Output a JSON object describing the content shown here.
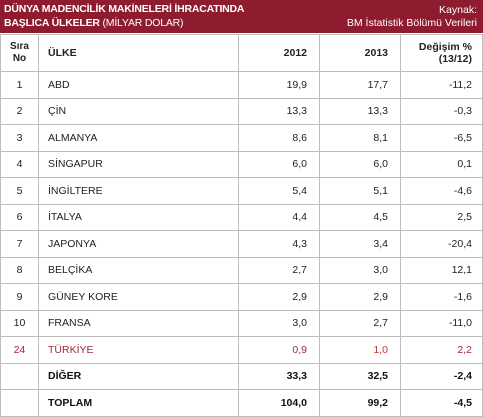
{
  "header": {
    "title_line1": "DÜNYA MADENCİLİK MAKİNELERİ İHRACATINDA",
    "title_line2_bold": "BAŞLICA ÜLKELER",
    "title_line2_rest": " (MİLYAR DOLAR)",
    "source_label": "Kaynak:",
    "source_value": "BM İstatistik Bölümü Verileri"
  },
  "columns": {
    "rank_line1": "Sıra",
    "rank_line2": "No",
    "country": "ÜLKE",
    "y2012": "2012",
    "y2013": "2013",
    "change_line1": "Değişim %",
    "change_line2": "(13/12)"
  },
  "rows": [
    {
      "rank": "1",
      "country": "ABD",
      "y2012": "19,9",
      "y2013": "17,7",
      "change": "-11,2"
    },
    {
      "rank": "2",
      "country": "ÇİN",
      "y2012": "13,3",
      "y2013": "13,3",
      "change": "-0,3"
    },
    {
      "rank": "3",
      "country": "ALMANYA",
      "y2012": "8,6",
      "y2013": "8,1",
      "change": "-6,5"
    },
    {
      "rank": "4",
      "country": "SİNGAPUR",
      "y2012": "6,0",
      "y2013": "6,0",
      "change": "0,1"
    },
    {
      "rank": "5",
      "country": "İNGİLTERE",
      "y2012": "5,4",
      "y2013": "5,1",
      "change": "-4,6"
    },
    {
      "rank": "6",
      "country": "İTALYA",
      "y2012": "4,4",
      "y2013": "4,5",
      "change": "2,5"
    },
    {
      "rank": "7",
      "country": "JAPONYA",
      "y2012": "4,3",
      "y2013": "3,4",
      "change": "-20,4"
    },
    {
      "rank": "8",
      "country": "BELÇİKA",
      "y2012": "2,7",
      "y2013": "3,0",
      "change": "12,1"
    },
    {
      "rank": "9",
      "country": "GÜNEY KORE",
      "y2012": "2,9",
      "y2013": "2,9",
      "change": "-1,6"
    },
    {
      "rank": "10",
      "country": "FRANSA",
      "y2012": "3,0",
      "y2013": "2,7",
      "change": "-11,0"
    },
    {
      "rank": "24",
      "country": "TÜRKİYE",
      "y2012": "0,9",
      "y2013": "1,0",
      "change": "2,2"
    }
  ],
  "other": {
    "country": "DİĞER",
    "y2012": "33,3",
    "y2013": "32,5",
    "change": "-2,4"
  },
  "total": {
    "country": "TOPLAM",
    "y2012": "104,0",
    "y2013": "99,2",
    "change": "-4,5"
  },
  "colors": {
    "header_bg": "#8e1c2e",
    "highlight_text": "#a0283c"
  }
}
